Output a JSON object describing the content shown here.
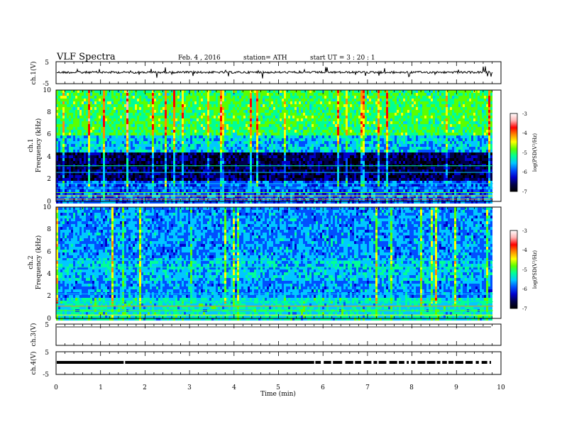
{
  "header": {
    "title": "VLF  Spectra",
    "date": "Feb. 4  , 2016",
    "station": "station= ATH",
    "start": "start  UT  =   3  : 20 : 1"
  },
  "colors": {
    "spectrogram_scale": [
      "#000000",
      "#00004a",
      "#0000cc",
      "#0050ff",
      "#00c8ff",
      "#00ff96",
      "#5aff00",
      "#ffff00",
      "#ff8c00",
      "#ff0000",
      "#ffb4b4",
      "#ffffff"
    ],
    "trace": "#000000"
  },
  "chart_data": [
    {
      "type": "line",
      "panel": "ch1-waveform",
      "ylabel": "ch.1(V)",
      "ylim": [
        -5,
        5
      ],
      "yticks": [
        "5",
        "-5"
      ],
      "description_values": {
        "baseline": -0.3,
        "typical_amplitude": 0.6,
        "max_spike": 1.5
      }
    },
    {
      "type": "heatmap",
      "panel": "ch1-spectrogram",
      "ylabel_line1": "ch.1",
      "ylabel_line2": "Frequency  (kHz)",
      "ylim": [
        0,
        10
      ],
      "yticks": [
        "0",
        "2",
        "4",
        "6",
        "8",
        "10"
      ],
      "colorbar": {
        "label": "log(PSD(V²/Hz)",
        "range": [
          -7,
          -3
        ],
        "ticks": [
          "-3",
          "-4",
          "-5",
          "-6",
          "-7"
        ]
      }
    },
    {
      "type": "heatmap",
      "panel": "ch2-spectrogram",
      "ylabel_line1": "ch.2",
      "ylabel_line2": "Frequency  (kHz)",
      "ylim": [
        0,
        10
      ],
      "yticks": [
        "0",
        "2",
        "4",
        "6",
        "8",
        "10"
      ],
      "colorbar": {
        "label": "log(PSD(V²/Hz)",
        "range": [
          -7,
          -3
        ],
        "ticks": [
          "-3",
          "-4",
          "-5",
          "-6",
          "-7"
        ]
      }
    },
    {
      "type": "line",
      "panel": "ch3-waveform",
      "ylabel": "ch.3(V)",
      "ylim": [
        -5,
        5
      ],
      "yticks": [
        "5"
      ],
      "description_values": {
        "baseline": 0.0
      }
    },
    {
      "type": "line",
      "panel": "ch4-waveform",
      "ylabel": "ch.4(V)",
      "ylim": [
        -5,
        5
      ],
      "yticks": [
        "5",
        "-5"
      ],
      "description_values": {
        "baseline": 0.0
      }
    }
  ],
  "xaxis": {
    "label": "Time  (min)",
    "xlim": [
      0,
      10
    ],
    "ticks": [
      "0",
      "1",
      "2",
      "3",
      "4",
      "5",
      "6",
      "7",
      "8",
      "9",
      "10"
    ],
    "data_end": 9.82
  }
}
